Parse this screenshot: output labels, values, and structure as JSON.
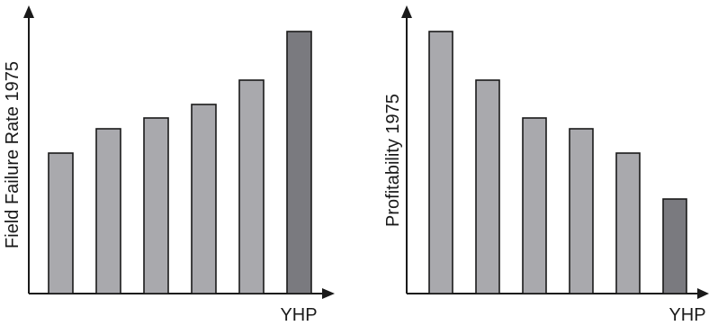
{
  "chart_data": [
    {
      "type": "bar",
      "ylabel": "Field Failure Rate 1975",
      "xlabel": "YHP",
      "categories": [
        "",
        "",
        "",
        "",
        "",
        "YHP"
      ],
      "values": [
        52,
        61,
        65,
        70,
        79,
        97
      ],
      "ylim": [
        0,
        100
      ],
      "highlight_index": 5,
      "bar_color": "#a9a9ad",
      "highlight_color": "#7a7a7f",
      "grid": false
    },
    {
      "type": "bar",
      "ylabel": "Profitability 1975",
      "xlabel": "YHP",
      "categories": [
        "",
        "",
        "",
        "",
        "",
        "YHP"
      ],
      "values": [
        97,
        79,
        65,
        61,
        52,
        35
      ],
      "ylim": [
        0,
        100
      ],
      "highlight_index": 5,
      "bar_color": "#a9a9ad",
      "highlight_color": "#7a7a7f",
      "grid": false
    }
  ]
}
